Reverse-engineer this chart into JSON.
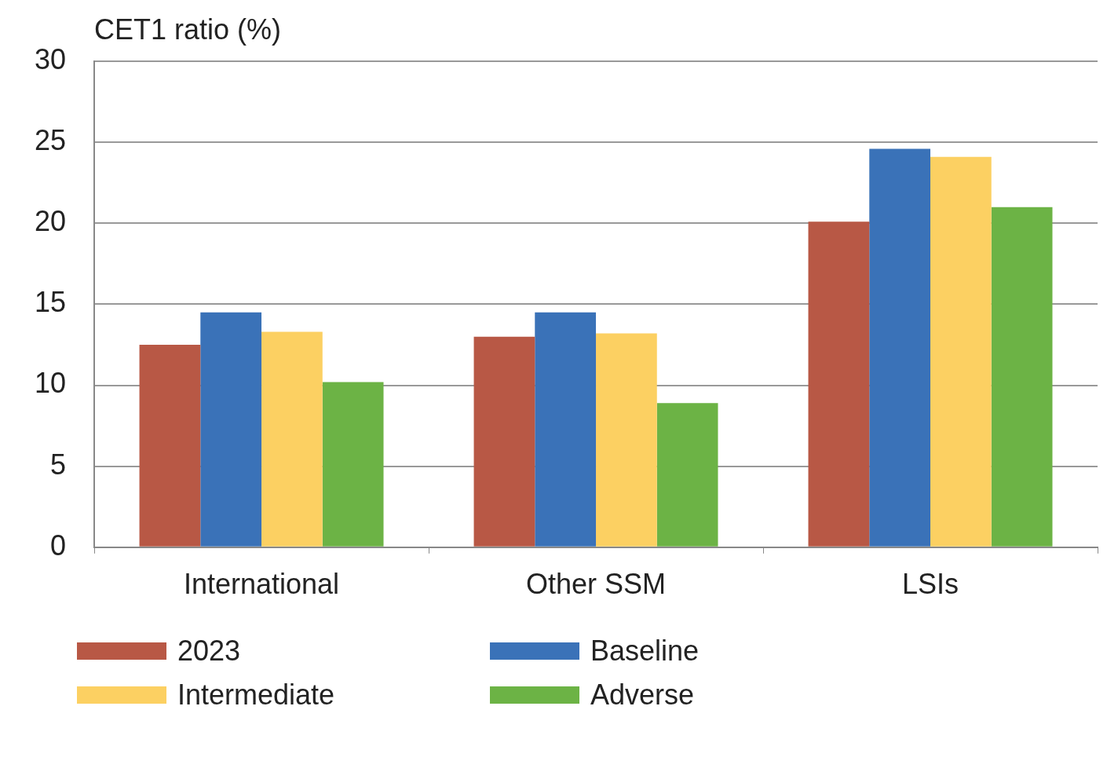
{
  "chart_data": {
    "type": "bar",
    "ylabel": "CET1 ratio (%)",
    "categories": [
      "International",
      "Other SSM",
      "LSIs"
    ],
    "series": [
      {
        "name": "2023",
        "color": "#b85845",
        "values": [
          12.5,
          13.0,
          20.1
        ]
      },
      {
        "name": "Baseline",
        "color": "#3a72b8",
        "values": [
          14.5,
          14.5,
          24.6
        ]
      },
      {
        "name": "Intermediate",
        "color": "#fcd062",
        "values": [
          13.3,
          13.2,
          24.1
        ]
      },
      {
        "name": "Adverse",
        "color": "#6cb345",
        "values": [
          10.2,
          8.9,
          21.0
        ]
      }
    ],
    "ylim": [
      0,
      30
    ],
    "yticks": [
      0,
      5,
      10,
      15,
      20,
      25,
      30
    ],
    "grid": "y",
    "legend": "bottom"
  }
}
